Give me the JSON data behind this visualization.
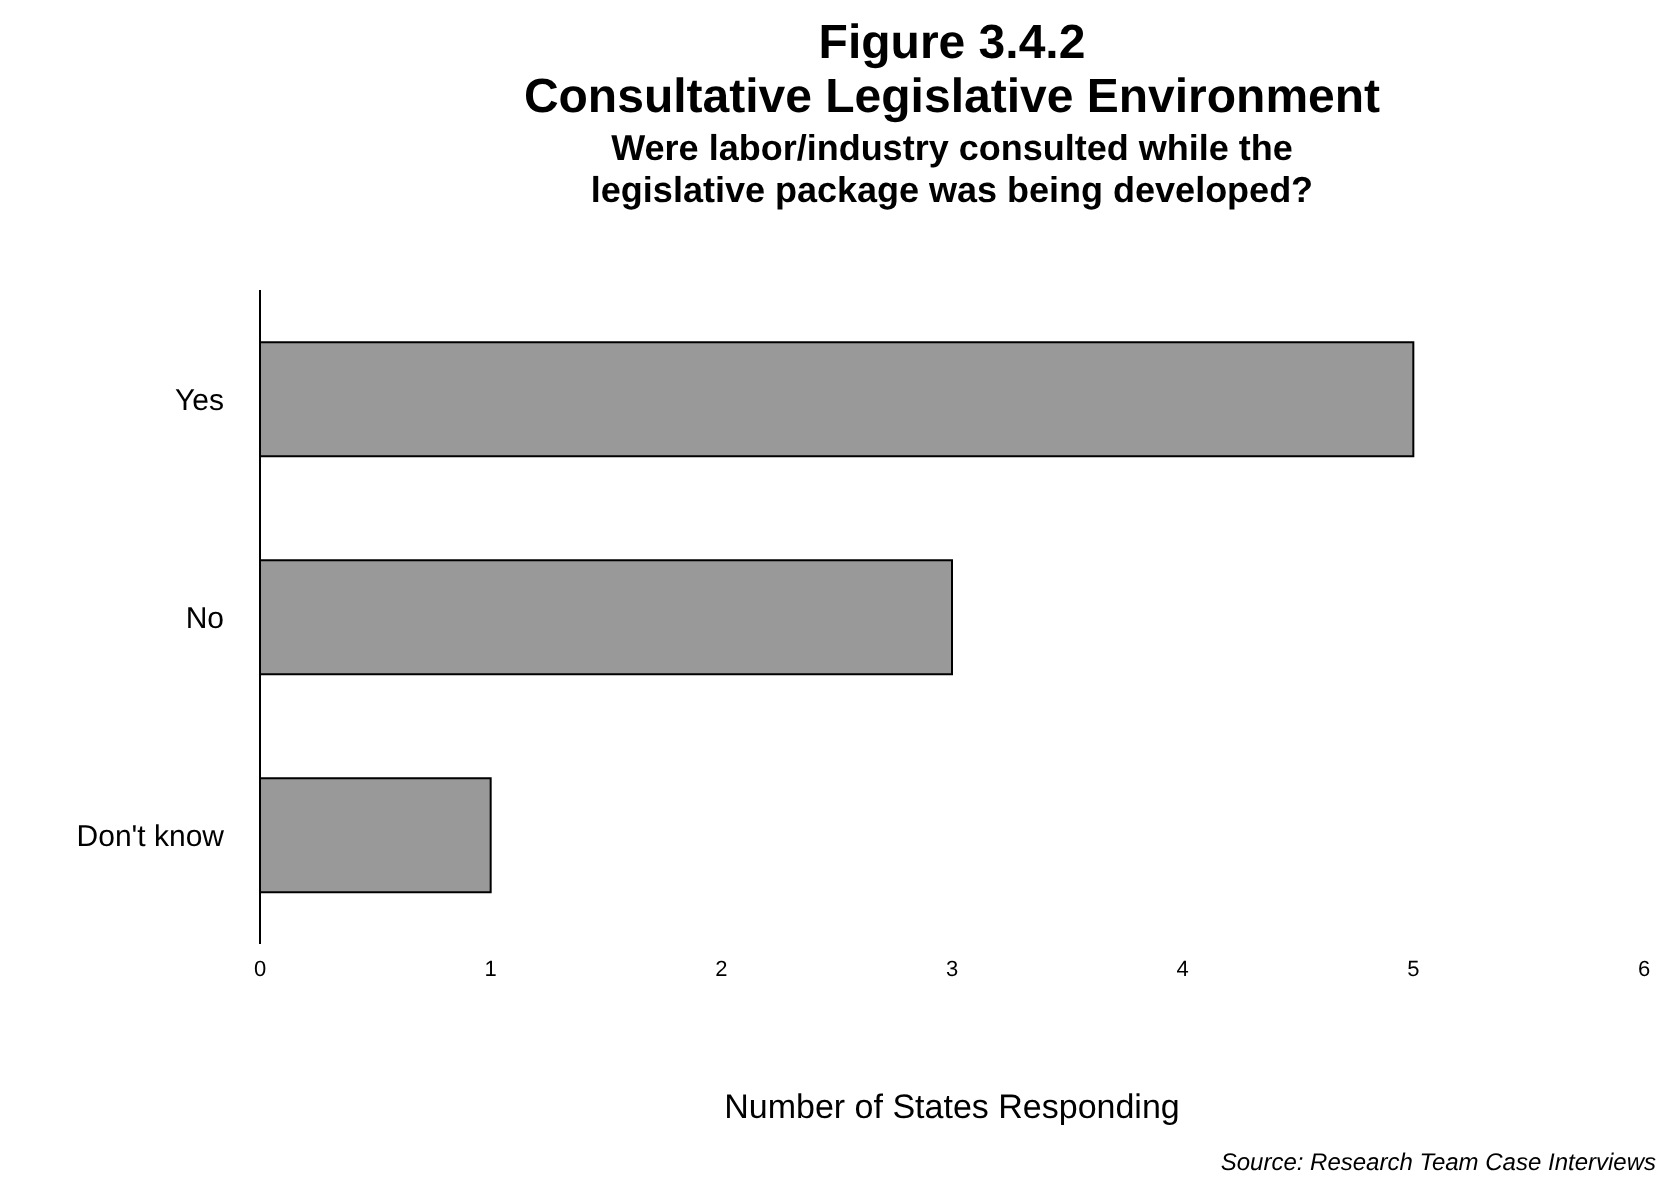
{
  "chart_data": {
    "type": "bar",
    "orientation": "horizontal",
    "title": "Figure 3.4.2\nConsultative Legislative Environment",
    "subtitle": "Were labor/industry consulted while the\nlegislative package was being developed?",
    "xlabel": "Number of States Responding",
    "annotations": [
      "Source:  Research Team Case Interviews"
    ],
    "categories": [
      "Yes",
      "No",
      "Don't know"
    ],
    "values": [
      5,
      3,
      1
    ],
    "color": "#999999",
    "xlim": [
      0,
      6
    ],
    "xticks": [
      0,
      1,
      2,
      3,
      4,
      5,
      6
    ],
    "grid": false,
    "legend": false
  }
}
